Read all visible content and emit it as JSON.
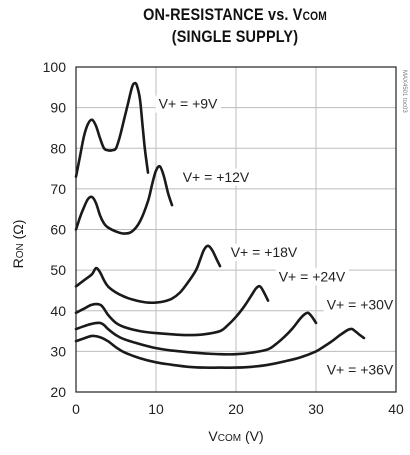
{
  "chart_data": {
    "type": "line",
    "title_line1": "ON-RESISTANCE vs. V",
    "title_line1_sub": "COM",
    "title_line2": "(SINGLE SUPPLY)",
    "ylabel_main": "R",
    "ylabel_sub": "ON",
    "ylabel_unit": " (Ω)",
    "xlabel_main": "V",
    "xlabel_sub": "COM",
    "xlabel_unit": " (V)",
    "xlim": [
      0,
      40
    ],
    "ylim": [
      20,
      100
    ],
    "xticks": [
      0,
      10,
      20,
      30,
      40
    ],
    "yticks": [
      20,
      30,
      40,
      50,
      60,
      70,
      80,
      90,
      100
    ],
    "grid": true,
    "watermark": "MAX4501 toc03",
    "series": [
      {
        "name": "V+ = +9V",
        "label_pos": [
          14,
          90
        ],
        "x": [
          0,
          0.5,
          1,
          1.5,
          2,
          2.5,
          3,
          3.5,
          4,
          4.5,
          5,
          5.5,
          6,
          6.5,
          7,
          7.3,
          7.6,
          8,
          8.3,
          8.6,
          9
        ],
        "y": [
          73,
          78,
          83,
          86,
          87,
          85.5,
          82.5,
          80,
          79.5,
          79.5,
          80,
          83,
          87,
          91,
          95,
          96,
          95.5,
          92,
          86,
          80,
          74
        ]
      },
      {
        "name": "V+ = +12V",
        "label_pos": [
          17.5,
          72
        ],
        "x": [
          0,
          0.5,
          1,
          1.5,
          2,
          2.5,
          3,
          3.5,
          4,
          5,
          6,
          7,
          8,
          9,
          9.5,
          10,
          10.5,
          11,
          11.5,
          12
        ],
        "y": [
          60,
          63,
          65.5,
          67.5,
          68,
          66.5,
          63.5,
          61.5,
          60.5,
          59.5,
          59,
          59.5,
          62,
          67,
          71,
          74.5,
          75.5,
          73,
          69,
          66
        ]
      },
      {
        "name": "V+ = +18V",
        "label_pos": [
          23.5,
          53.5
        ],
        "x": [
          0,
          1,
          2,
          2.5,
          3,
          3.5,
          4,
          5,
          6,
          7,
          8,
          9,
          10,
          11,
          12,
          13,
          14,
          15,
          15.5,
          16,
          16.5,
          17,
          17.5,
          18
        ],
        "y": [
          46,
          47.5,
          49,
          50.5,
          49.5,
          47.5,
          46,
          44.5,
          43.5,
          42.8,
          42.3,
          42,
          42,
          42.3,
          43,
          44.5,
          47,
          50,
          52.5,
          55,
          56,
          55,
          53,
          51
        ]
      },
      {
        "name": "V+ = +24V",
        "label_pos": [
          29.5,
          47.5
        ],
        "x": [
          0,
          1,
          2,
          3,
          3.5,
          4,
          5,
          6,
          8,
          10,
          12,
          14,
          16,
          18,
          19,
          20,
          21,
          22,
          22.5,
          23,
          23.5,
          24
        ],
        "y": [
          39.5,
          40.5,
          41.5,
          41.5,
          40.5,
          39,
          37,
          36,
          35,
          34.5,
          34.2,
          34,
          34.2,
          35,
          36.5,
          38.5,
          41,
          44,
          45.5,
          46,
          44.5,
          42.5
        ]
      },
      {
        "name": "V+ = +30V",
        "label_pos": [
          35.5,
          40.5
        ],
        "x": [
          0,
          1,
          2,
          3,
          3.5,
          4,
          5,
          6,
          8,
          10,
          12,
          14,
          16,
          18,
          20,
          22,
          24,
          25,
          26,
          27,
          28,
          28.5,
          29,
          29.5,
          30
        ],
        "y": [
          35.5,
          36.2,
          36.8,
          37,
          36.5,
          35.5,
          34,
          33,
          31.8,
          30.8,
          30.2,
          29.8,
          29.5,
          29.3,
          29.3,
          29.7,
          30.5,
          31.8,
          33.5,
          35.5,
          38,
          39,
          39.5,
          38.5,
          37
        ]
      },
      {
        "name": "V+ = +36V",
        "label_pos": [
          35.5,
          24.5
        ],
        "x": [
          0,
          1,
          2,
          3,
          4,
          5,
          6,
          8,
          10,
          12,
          14,
          16,
          18,
          20,
          22,
          24,
          26,
          28,
          30,
          31,
          32,
          33,
          34,
          34.5,
          35,
          35.5,
          36
        ],
        "y": [
          32.5,
          33.2,
          33.8,
          33.5,
          32.5,
          31,
          29.8,
          28.3,
          27.3,
          26.7,
          26.2,
          26,
          26,
          26,
          26.2,
          26.7,
          27.5,
          28.5,
          30,
          31.2,
          32.5,
          34,
          35.3,
          35.5,
          34.8,
          34,
          33.3
        ]
      }
    ]
  }
}
